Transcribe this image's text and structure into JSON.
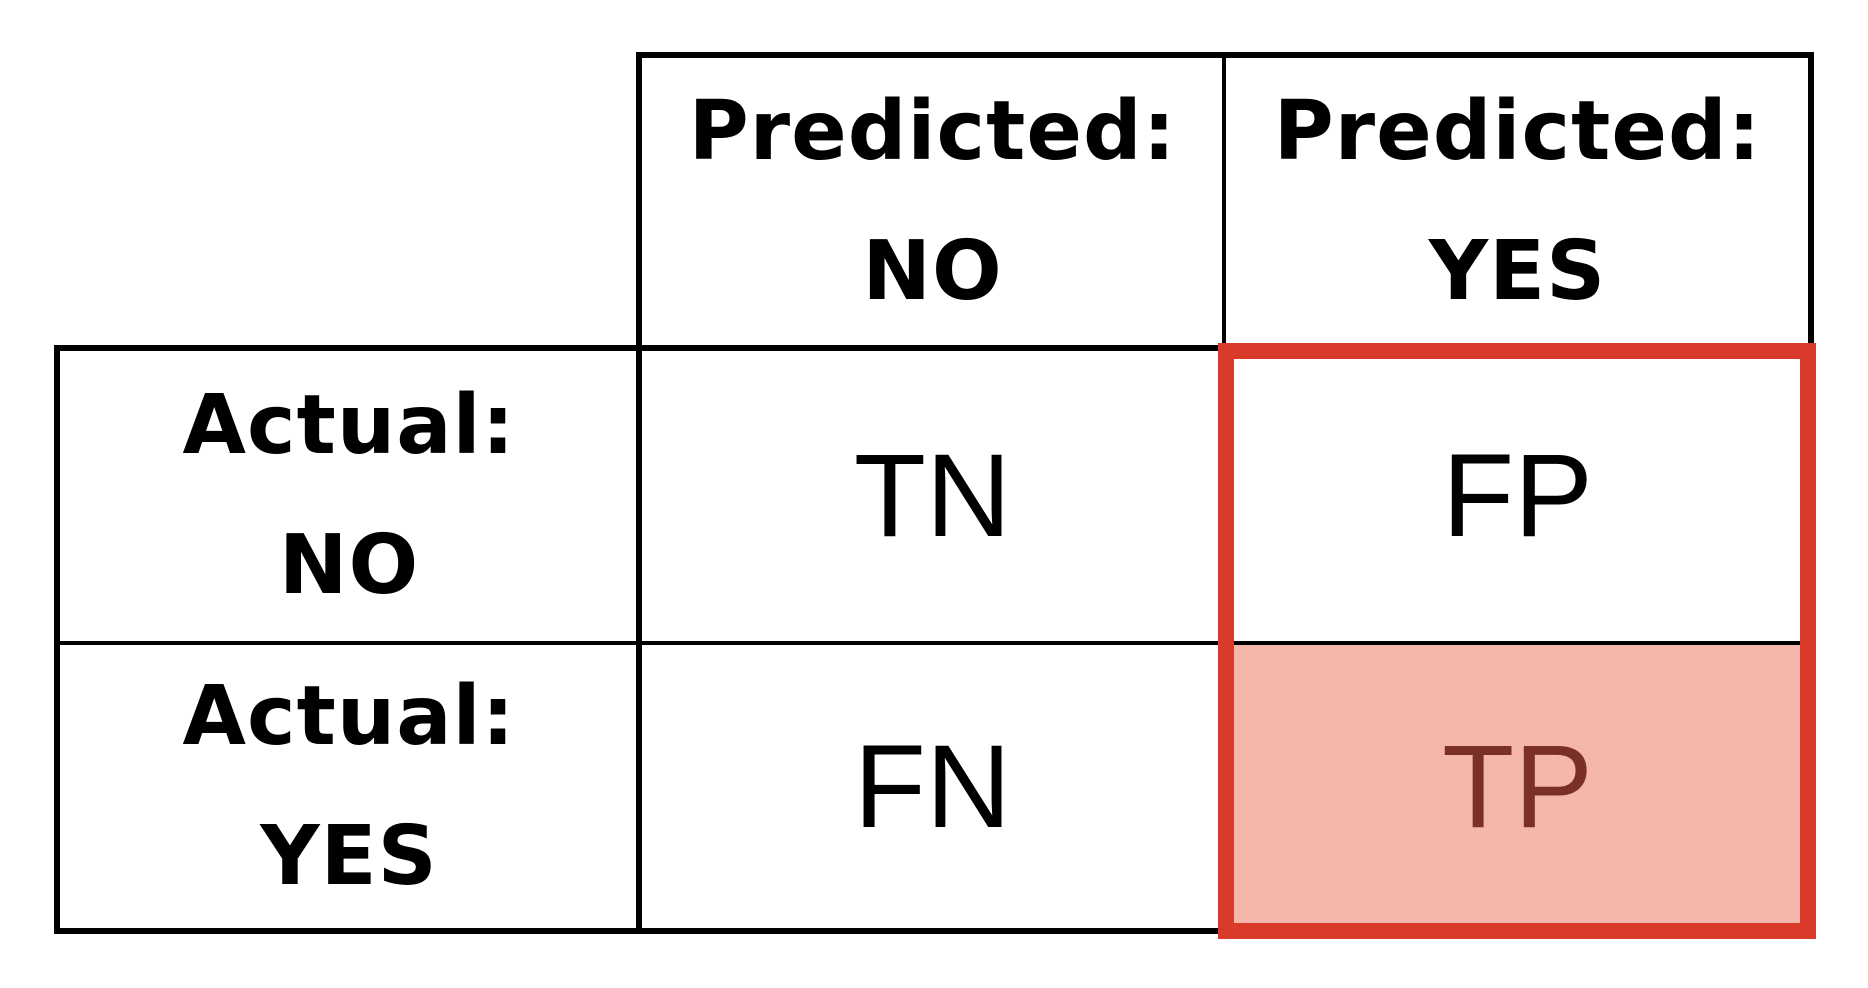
{
  "matrix": {
    "col_headers": [
      {
        "line1": "Predicted:",
        "line2": "NO"
      },
      {
        "line1": "Predicted:",
        "line2": "YES"
      }
    ],
    "row_headers": [
      {
        "line1": "Actual:",
        "line2": "NO"
      },
      {
        "line1": "Actual:",
        "line2": "YES"
      }
    ],
    "cells": [
      [
        "TN",
        "FP"
      ],
      [
        "FN",
        "TP"
      ]
    ],
    "highlight": {
      "column": "Predicted: YES",
      "border_color": "#d93a2a",
      "filled_cell": "TP",
      "fill_color": "#f5b7ab",
      "filled_text_color": "#7a2f28"
    }
  }
}
